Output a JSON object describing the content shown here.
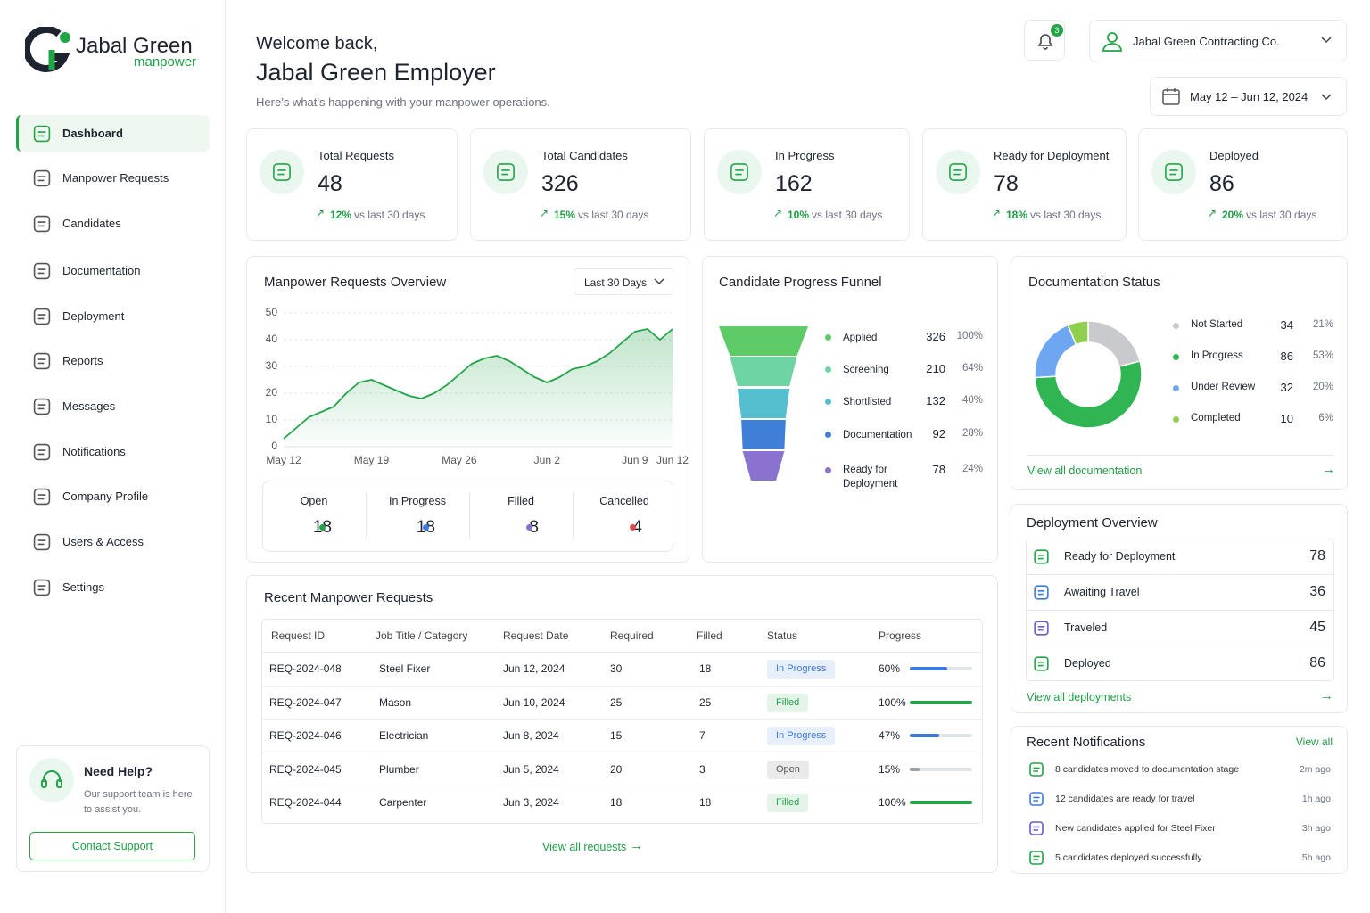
{
  "brand": {
    "name": "Jabal Green",
    "sub": "manpower"
  },
  "nav": [
    "Dashboard",
    "Manpower Requests",
    "Candidates",
    "Documentation",
    "Deployment",
    "Reports",
    "Messages",
    "Notifications",
    "Company Profile",
    "Users & Access",
    "Settings"
  ],
  "help": {
    "title": "Need Help?",
    "text": "Our support team is here to assist you.",
    "button": "Contact Support"
  },
  "header": {
    "greeting": "Welcome back,",
    "name": "Jabal Green Employer",
    "subtitle": "Here’s what’s happening with your manpower operations.",
    "notifications": "3",
    "company": "Jabal Green Contracting Co.",
    "date_range": "May 12 – Jun 12, 2024"
  },
  "kpi_note": "vs last 30 days",
  "kpis": [
    {
      "label": "Total Requests",
      "value": "48",
      "change": "12%"
    },
    {
      "label": "Total Candidates",
      "value": "326",
      "change": "15%"
    },
    {
      "label": "In Progress",
      "value": "162",
      "change": "10%"
    },
    {
      "label": "Ready for Deployment",
      "value": "78",
      "change": "18%"
    },
    {
      "label": "Deployed",
      "value": "86",
      "change": "20%"
    }
  ],
  "chart_data": {
    "type": "line",
    "title": "Manpower Requests Overview",
    "filter": "Last 30 Days",
    "categories": [
      "May 12",
      null,
      null,
      null,
      null,
      null,
      null,
      "May 19",
      null,
      null,
      null,
      null,
      null,
      null,
      "May 26",
      null,
      null,
      null,
      null,
      null,
      null,
      "Jun 2",
      null,
      null,
      null,
      null,
      null,
      null,
      "Jun 9",
      null,
      null,
      "Jun 12"
    ],
    "values": [
      3,
      7,
      11,
      13,
      15,
      20,
      24,
      25,
      23,
      21,
      19,
      18,
      20,
      23,
      27,
      31,
      33,
      34,
      32,
      29,
      26,
      24,
      26,
      29,
      30,
      32,
      35,
      39,
      43,
      44,
      40,
      44
    ],
    "color": "#22a447",
    "ylim": [
      0,
      50
    ],
    "yticks": [
      0,
      10,
      20,
      30,
      40,
      50
    ],
    "grid": true
  },
  "summary": [
    {
      "label": "Open",
      "value": "18",
      "color": "#22a447"
    },
    {
      "label": "In Progress",
      "value": "18",
      "color": "#3b7be0"
    },
    {
      "label": "Filled",
      "value": "8",
      "color": "#8a72d0"
    },
    {
      "label": "Cancelled",
      "value": "4",
      "color": "#e24a4a"
    }
  ],
  "funnel": {
    "title": "Candidate Progress Funnel",
    "stages": [
      {
        "label": "Applied",
        "value": 326,
        "pct": "100%",
        "color": "#5fcb67"
      },
      {
        "label": "Screening",
        "value": 210,
        "pct": "64%",
        "color": "#6fd4a3"
      },
      {
        "label": "Shortlisted",
        "value": 132,
        "pct": "40%",
        "color": "#55bfcf"
      },
      {
        "label": "Documentation",
        "value": 92,
        "pct": "28%",
        "color": "#3f7fd8"
      },
      {
        "label": "Ready for Deployment",
        "value": 78,
        "pct": "24%",
        "color": "#8a72d0"
      }
    ]
  },
  "documentation": {
    "title": "Documentation Status",
    "segments": [
      {
        "label": "Not Started",
        "value": 34,
        "pct": "21%",
        "color": "#c8cacd"
      },
      {
        "label": "In Progress",
        "value": 86,
        "pct": "53%",
        "color": "#2fb552"
      },
      {
        "label": "Under Review",
        "value": 32,
        "pct": "20%",
        "color": "#6ea6f2"
      },
      {
        "label": "Completed",
        "value": 10,
        "pct": "6%",
        "color": "#8fd14f"
      }
    ],
    "link": "View all documentation"
  },
  "deployment": {
    "title": "Deployment Overview",
    "items": [
      {
        "label": "Ready for Deployment",
        "value": "78"
      },
      {
        "label": "Awaiting Travel",
        "value": "36"
      },
      {
        "label": "Traveled",
        "value": "45"
      },
      {
        "label": "Deployed",
        "value": "86"
      }
    ],
    "link": "View all deployments"
  },
  "notifications": {
    "title": "Recent Notifications",
    "link": "View all",
    "items": [
      {
        "text": "8 candidates moved to documentation stage",
        "time": "2m ago"
      },
      {
        "text": "12 candidates are ready for travel",
        "time": "1h ago"
      },
      {
        "text": "New candidates applied for Steel Fixer",
        "time": "3h ago"
      },
      {
        "text": "5 candidates deployed successfully",
        "time": "5h ago"
      }
    ]
  },
  "table": {
    "title": "Recent Manpower Requests",
    "columns": [
      "Request ID",
      "Job Title / Category",
      "Request Date",
      "Required",
      "Filled",
      "Status",
      "Progress"
    ],
    "rows": [
      {
        "id": "REQ-2024-048",
        "title": "Steel Fixer",
        "date": "Jun 12, 2024",
        "required": 30,
        "filled": 18,
        "status": "In Progress",
        "status_color": "#3b7be0",
        "progress": "60%"
      },
      {
        "id": "REQ-2024-047",
        "title": "Mason",
        "date": "Jun 10, 2024",
        "required": 25,
        "filled": 25,
        "status": "Filled",
        "status_color": "#22a447",
        "progress": "100%"
      },
      {
        "id": "REQ-2024-046",
        "title": "Electrician",
        "date": "Jun 8, 2024",
        "required": 15,
        "filled": 7,
        "status": "In Progress",
        "status_color": "#3b7be0",
        "progress": "47%"
      },
      {
        "id": "REQ-2024-045",
        "title": "Plumber",
        "date": "Jun 5, 2024",
        "required": 20,
        "filled": 3,
        "status": "Open",
        "status_color": "#555555",
        "progress": "15%"
      },
      {
        "id": "REQ-2024-044",
        "title": "Carpenter",
        "date": "Jun 3, 2024",
        "required": 18,
        "filled": 18,
        "status": "Filled",
        "status_color": "#22a447",
        "progress": "100%"
      }
    ],
    "link": "View all requests"
  }
}
